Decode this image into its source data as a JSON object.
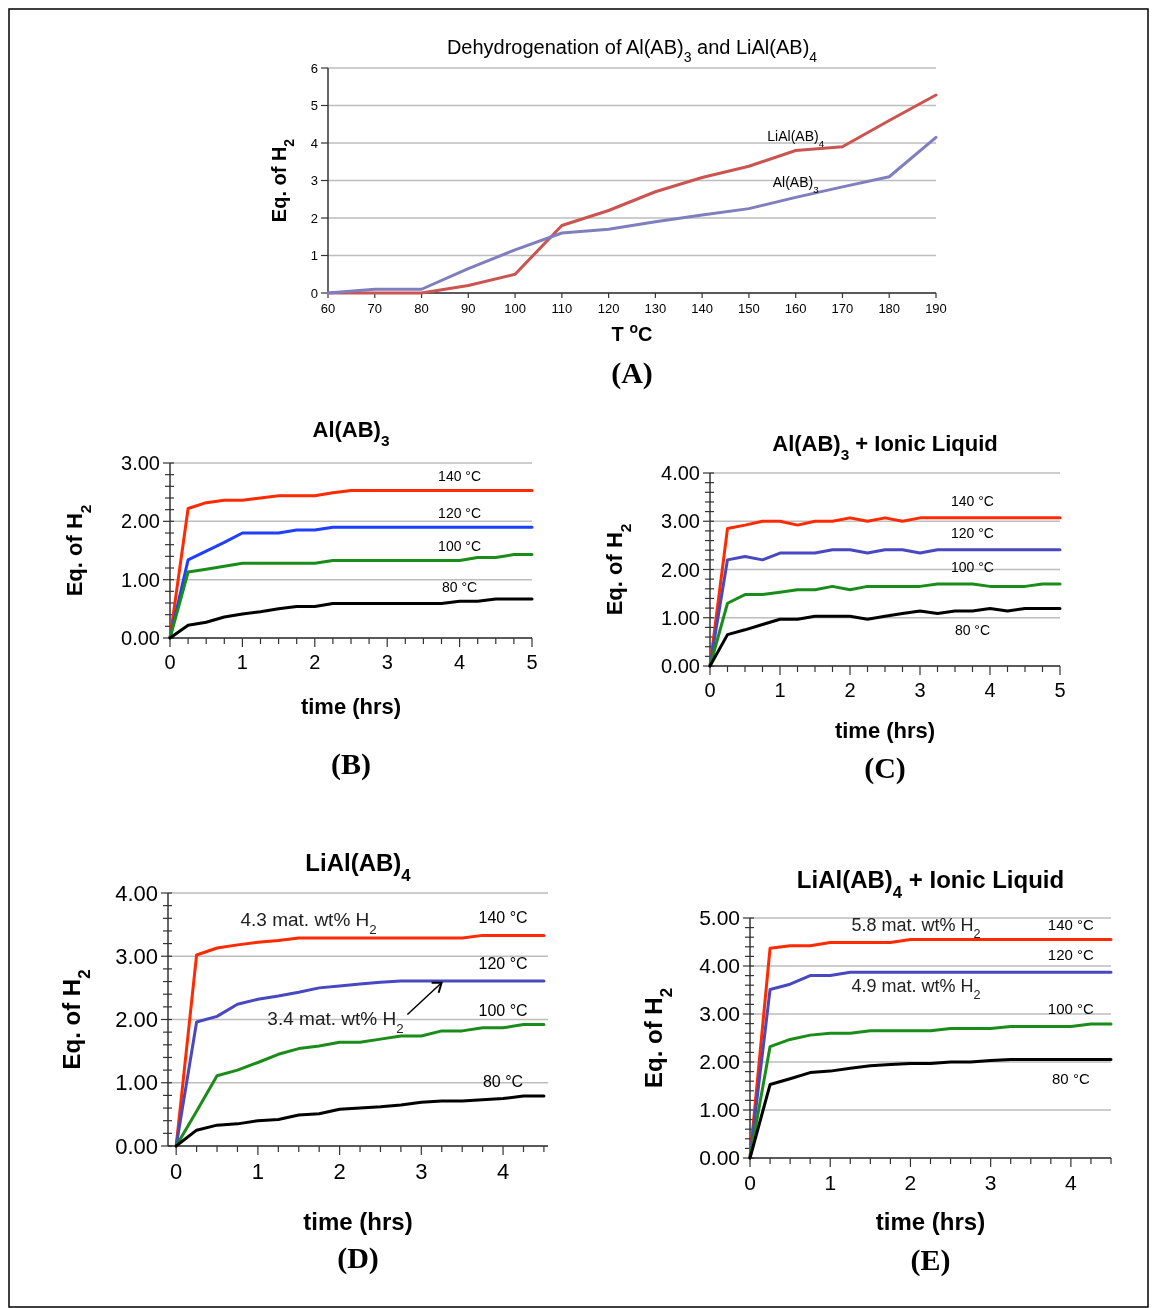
{
  "chart_data": [
    {
      "type": "line",
      "title": "Dehydrogenation of Al(AB)$_{3}$ and LiAl(AB)$_{4}$",
      "xlabel": "T $^{o}$C",
      "ylabel": "Eq. of H$_{2}$",
      "x": [
        60,
        70,
        80,
        90,
        100,
        110,
        120,
        130,
        140,
        150,
        160,
        170,
        180,
        190
      ],
      "series": [
        {
          "name": "LiAl(AB)$_{4}$",
          "color": "#cc5450",
          "values": [
            0,
            0,
            0,
            0.2,
            0.5,
            1.8,
            2.2,
            2.7,
            3.08,
            3.38,
            3.8,
            3.9,
            4.6,
            5.28
          ]
        },
        {
          "name": "Al(AB)$_{3}$",
          "color": "#7f7fbf",
          "values": [
            0,
            0.1,
            0.1,
            0.65,
            1.15,
            1.6,
            1.7,
            1.9,
            2.08,
            2.25,
            2.55,
            2.83,
            3.1,
            4.15
          ]
        }
      ],
      "xlim": [
        60,
        190
      ],
      "xticks": [
        60,
        70,
        80,
        90,
        100,
        110,
        120,
        130,
        140,
        150,
        160,
        170,
        180,
        190
      ],
      "ylim": [
        0,
        6
      ],
      "yticks": [
        0,
        1,
        2,
        3,
        4,
        5,
        6
      ],
      "grid": "y",
      "legend": false,
      "marker": "none",
      "annotations": [
        "(A)"
      ]
    },
    {
      "type": "line",
      "title": "Al(AB)$_{3}$",
      "xlabel": "time (hrs)",
      "ylabel": "Eq. of H$_{2}$",
      "x": [
        0,
        0.25,
        0.5,
        0.75,
        1,
        1.25,
        1.5,
        1.75,
        2,
        2.25,
        2.5,
        2.75,
        3,
        3.25,
        3.5,
        3.75,
        4,
        4.25,
        4.5,
        4.75,
        5
      ],
      "series": [
        {
          "name": "140 °C",
          "color": "#ff2a00",
          "values": [
            0,
            2.22,
            2.32,
            2.36,
            2.36,
            2.4,
            2.44,
            2.44,
            2.44,
            2.49,
            2.53,
            2.53,
            2.53,
            2.53,
            2.53,
            2.53,
            2.53,
            2.53,
            2.53,
            2.53,
            2.53
          ]
        },
        {
          "name": "120 °C",
          "color": "#1f3fff",
          "values": [
            0,
            1.34,
            1.49,
            1.64,
            1.8,
            1.8,
            1.8,
            1.85,
            1.85,
            1.9,
            1.9,
            1.9,
            1.9,
            1.9,
            1.9,
            1.9,
            1.9,
            1.9,
            1.9,
            1.9,
            1.9
          ]
        },
        {
          "name": "100 °C",
          "color": "#1a8c1a",
          "values": [
            0,
            1.13,
            1.18,
            1.23,
            1.28,
            1.28,
            1.28,
            1.28,
            1.28,
            1.33,
            1.33,
            1.33,
            1.33,
            1.33,
            1.33,
            1.33,
            1.33,
            1.38,
            1.38,
            1.43,
            1.43
          ]
        },
        {
          "name": "80 °C",
          "color": "#000000",
          "values": [
            0,
            0.22,
            0.27,
            0.36,
            0.41,
            0.45,
            0.5,
            0.54,
            0.54,
            0.59,
            0.59,
            0.59,
            0.59,
            0.59,
            0.59,
            0.59,
            0.63,
            0.63,
            0.67,
            0.67,
            0.67
          ]
        }
      ],
      "xlim": [
        0,
        5
      ],
      "xticks": [
        0,
        {
          "value": 0.25,
          "label": null
        },
        {
          "value": 0.5,
          "label": null
        },
        {
          "value": 0.75,
          "label": null
        },
        1,
        {
          "value": 1.25,
          "label": null
        },
        {
          "value": 1.5,
          "label": null
        },
        {
          "value": 1.75,
          "label": null
        },
        2,
        {
          "value": 2.25,
          "label": null
        },
        {
          "value": 2.5,
          "label": null
        },
        {
          "value": 2.75,
          "label": null
        },
        3,
        {
          "value": 3.25,
          "label": null
        },
        {
          "value": 3.5,
          "label": null
        },
        {
          "value": 3.75,
          "label": null
        },
        4,
        {
          "value": 4.25,
          "label": null
        },
        {
          "value": 4.5,
          "label": null
        },
        {
          "value": 4.75,
          "label": null
        },
        5
      ],
      "ylim": [
        0,
        3
      ],
      "yticks": [
        {
          "value": 0,
          "label": "0.00"
        },
        {
          "value": 0.2,
          "label": null
        },
        {
          "value": 0.4,
          "label": null
        },
        {
          "value": 0.6,
          "label": null
        },
        {
          "value": 0.8,
          "label": null
        },
        {
          "value": 1,
          "label": "1.00"
        },
        {
          "value": 1.2,
          "label": null
        },
        {
          "value": 1.4,
          "label": null
        },
        {
          "value": 1.6,
          "label": null
        },
        {
          "value": 1.8,
          "label": null
        },
        {
          "value": 2,
          "label": "2.00"
        },
        {
          "value": 2.2,
          "label": null
        },
        {
          "value": 2.4,
          "label": null
        },
        {
          "value": 2.6,
          "label": null
        },
        {
          "value": 2.8,
          "label": null
        },
        {
          "value": 3,
          "label": "3.00"
        }
      ],
      "grid": "y",
      "legend": false,
      "marker": "none",
      "annotations": [
        "(B)"
      ]
    },
    {
      "type": "line",
      "title": "Al(AB)$_{3}$ + Ionic Liquid",
      "xlabel": "time (hrs)",
      "ylabel": "Eq. of H$_{2}$",
      "x": [
        0,
        0.25,
        0.5,
        0.75,
        1,
        1.25,
        1.5,
        1.75,
        2,
        2.25,
        2.5,
        2.75,
        3,
        3.25,
        3.5,
        3.75,
        4,
        4.25,
        4.5,
        4.75,
        5
      ],
      "series": [
        {
          "name": "140 °C",
          "color": "#ff2a00",
          "values": [
            0,
            2.85,
            2.92,
            3,
            3,
            2.92,
            3,
            3,
            3.07,
            3,
            3.07,
            3,
            3.07,
            3.07,
            3.07,
            3.07,
            3.07,
            3.07,
            3.07,
            3.07,
            3.07
          ]
        },
        {
          "name": "120 °C",
          "color": "#4848c0",
          "values": [
            0,
            2.2,
            2.27,
            2.2,
            2.34,
            2.34,
            2.34,
            2.41,
            2.41,
            2.34,
            2.41,
            2.41,
            2.34,
            2.41,
            2.41,
            2.41,
            2.41,
            2.41,
            2.41,
            2.41,
            2.41
          ]
        },
        {
          "name": "100 °C",
          "color": "#1a8c1a",
          "values": [
            0,
            1.3,
            1.48,
            1.48,
            1.53,
            1.58,
            1.58,
            1.65,
            1.58,
            1.65,
            1.65,
            1.65,
            1.65,
            1.7,
            1.7,
            1.7,
            1.65,
            1.65,
            1.65,
            1.7,
            1.7
          ]
        },
        {
          "name": "80 °C",
          "color": "#000000",
          "values": [
            0,
            0.65,
            0.75,
            0.86,
            0.97,
            0.97,
            1.03,
            1.03,
            1.03,
            0.97,
            1.03,
            1.09,
            1.14,
            1.09,
            1.14,
            1.14,
            1.19,
            1.14,
            1.19,
            1.19,
            1.19
          ]
        }
      ],
      "xlim": [
        0,
        5
      ],
      "xticks": [
        0,
        {
          "value": 0.25,
          "label": null
        },
        {
          "value": 0.5,
          "label": null
        },
        {
          "value": 0.75,
          "label": null
        },
        1,
        {
          "value": 1.25,
          "label": null
        },
        {
          "value": 1.5,
          "label": null
        },
        {
          "value": 1.75,
          "label": null
        },
        2,
        {
          "value": 2.25,
          "label": null
        },
        {
          "value": 2.5,
          "label": null
        },
        {
          "value": 2.75,
          "label": null
        },
        3,
        {
          "value": 3.25,
          "label": null
        },
        {
          "value": 3.5,
          "label": null
        },
        {
          "value": 3.75,
          "label": null
        },
        4,
        {
          "value": 4.25,
          "label": null
        },
        {
          "value": 4.5,
          "label": null
        },
        {
          "value": 4.75,
          "label": null
        },
        5
      ],
      "ylim": [
        0,
        4
      ],
      "yticks": [
        {
          "value": 0,
          "label": "0.00"
        },
        {
          "value": 0.2,
          "label": null
        },
        {
          "value": 0.4,
          "label": null
        },
        {
          "value": 0.6,
          "label": null
        },
        {
          "value": 0.8,
          "label": null
        },
        {
          "value": 1,
          "label": "1.00"
        },
        {
          "value": 1.2,
          "label": null
        },
        {
          "value": 1.4,
          "label": null
        },
        {
          "value": 1.6,
          "label": null
        },
        {
          "value": 1.8,
          "label": null
        },
        {
          "value": 2,
          "label": "2.00"
        },
        {
          "value": 2.2,
          "label": null
        },
        {
          "value": 2.4,
          "label": null
        },
        {
          "value": 2.6,
          "label": null
        },
        {
          "value": 2.8,
          "label": null
        },
        {
          "value": 3,
          "label": "3.00"
        },
        {
          "value": 3.2,
          "label": null
        },
        {
          "value": 3.4,
          "label": null
        },
        {
          "value": 3.6,
          "label": null
        },
        {
          "value": 3.8,
          "label": null
        },
        {
          "value": 4,
          "label": "4.00"
        }
      ],
      "grid": "y",
      "legend": false,
      "marker": "none",
      "annotations": [
        "(C)"
      ]
    },
    {
      "type": "line",
      "title": "LiAl(AB)$_{4}$",
      "xlabel": "time (hrs)",
      "ylabel": "Eq. of H$_{2}$",
      "x": [
        0,
        0.25,
        0.5,
        0.75,
        1,
        1.25,
        1.5,
        1.75,
        2,
        2.25,
        2.5,
        2.75,
        3,
        3.25,
        3.5,
        3.75,
        4,
        4.25,
        4.5
      ],
      "series": [
        {
          "name": "140 °C",
          "color": "#ff2a00",
          "values": [
            0,
            3.02,
            3.13,
            3.18,
            3.22,
            3.25,
            3.29,
            3.29,
            3.29,
            3.29,
            3.29,
            3.29,
            3.29,
            3.29,
            3.29,
            3.33,
            3.33,
            3.33,
            3.33
          ]
        },
        {
          "name": "120 °C",
          "color": "#4848c0",
          "values": [
            0,
            1.96,
            2.05,
            2.24,
            2.32,
            2.37,
            2.43,
            2.5,
            2.53,
            2.56,
            2.59,
            2.61,
            2.61,
            2.61,
            2.61,
            2.61,
            2.61,
            2.61,
            2.61
          ]
        },
        {
          "name": "100 °C",
          "color": "#1a8c1a",
          "values": [
            0,
            0.55,
            1.11,
            1.2,
            1.32,
            1.45,
            1.54,
            1.58,
            1.64,
            1.64,
            1.69,
            1.74,
            1.74,
            1.82,
            1.82,
            1.87,
            1.87,
            1.92,
            1.92
          ]
        },
        {
          "name": "80 °C",
          "color": "#000000",
          "values": [
            0,
            0.25,
            0.33,
            0.35,
            0.4,
            0.42,
            0.49,
            0.51,
            0.58,
            0.6,
            0.62,
            0.65,
            0.69,
            0.71,
            0.71,
            0.73,
            0.75,
            0.79,
            0.79
          ]
        }
      ],
      "xlim": [
        -0.1,
        4.55
      ],
      "xticks": [
        0,
        {
          "value": 0.25,
          "label": null
        },
        {
          "value": 0.5,
          "label": null
        },
        {
          "value": 0.75,
          "label": null
        },
        1,
        {
          "value": 1.25,
          "label": null
        },
        {
          "value": 1.5,
          "label": null
        },
        {
          "value": 1.75,
          "label": null
        },
        2,
        {
          "value": 2.25,
          "label": null
        },
        {
          "value": 2.5,
          "label": null
        },
        {
          "value": 2.75,
          "label": null
        },
        3,
        {
          "value": 3.25,
          "label": null
        },
        {
          "value": 3.5,
          "label": null
        },
        {
          "value": 3.75,
          "label": null
        },
        4,
        {
          "value": 4.25,
          "label": null
        },
        {
          "value": 4.5,
          "label": null
        }
      ],
      "ylim": [
        0,
        4
      ],
      "yticks": [
        {
          "value": 0,
          "label": "0.00"
        },
        {
          "value": 0.2,
          "label": null
        },
        {
          "value": 0.4,
          "label": null
        },
        {
          "value": 0.6,
          "label": null
        },
        {
          "value": 0.8,
          "label": null
        },
        {
          "value": 1,
          "label": "1.00"
        },
        {
          "value": 1.2,
          "label": null
        },
        {
          "value": 1.4,
          "label": null
        },
        {
          "value": 1.6,
          "label": null
        },
        {
          "value": 1.8,
          "label": null
        },
        {
          "value": 2,
          "label": "2.00"
        },
        {
          "value": 2.2,
          "label": null
        },
        {
          "value": 2.4,
          "label": null
        },
        {
          "value": 2.6,
          "label": null
        },
        {
          "value": 2.8,
          "label": null
        },
        {
          "value": 3,
          "label": "3.00"
        },
        {
          "value": 3.2,
          "label": null
        },
        {
          "value": 3.4,
          "label": null
        },
        {
          "value": 3.6,
          "label": null
        },
        {
          "value": 3.8,
          "label": null
        },
        {
          "value": 4,
          "label": "4.00"
        }
      ],
      "grid": "y",
      "legend": false,
      "marker": "none",
      "annotations": [
        "4.3 mat. wt% H$_{2}$",
        "3.4 mat. wt% H$_{2}$",
        "(D)"
      ]
    },
    {
      "type": "line",
      "title": "LiAl(AB)$_{4}$ + Ionic Liquid",
      "xlabel": "time (hrs)",
      "ylabel": "Eq. of H$_{2}$",
      "x": [
        0,
        0.25,
        0.5,
        0.75,
        1,
        1.25,
        1.5,
        1.75,
        2,
        2.25,
        2.5,
        2.75,
        3,
        3.25,
        3.5,
        3.75,
        4,
        4.25,
        4.5
      ],
      "series": [
        {
          "name": "140 °C",
          "color": "#ff2a00",
          "values": [
            0,
            4.37,
            4.42,
            4.42,
            4.49,
            4.49,
            4.49,
            4.49,
            4.55,
            4.55,
            4.55,
            4.55,
            4.55,
            4.55,
            4.55,
            4.55,
            4.55,
            4.55,
            4.55
          ]
        },
        {
          "name": "120 °C",
          "color": "#4848c0",
          "values": [
            0,
            3.51,
            3.62,
            3.8,
            3.8,
            3.87,
            3.87,
            3.87,
            3.87,
            3.87,
            3.87,
            3.87,
            3.87,
            3.87,
            3.87,
            3.87,
            3.87,
            3.87,
            3.87
          ]
        },
        {
          "name": "100 °C",
          "color": "#1a8c1a",
          "values": [
            0,
            2.32,
            2.47,
            2.56,
            2.6,
            2.6,
            2.65,
            2.65,
            2.65,
            2.65,
            2.7,
            2.7,
            2.7,
            2.74,
            2.74,
            2.74,
            2.74,
            2.79,
            2.79
          ]
        },
        {
          "name": "80 °C",
          "color": "#000000",
          "values": [
            0,
            1.53,
            1.65,
            1.78,
            1.81,
            1.87,
            1.92,
            1.95,
            1.97,
            1.97,
            2,
            2,
            2.03,
            2.05,
            2.05,
            2.05,
            2.05,
            2.05,
            2.05
          ]
        }
      ],
      "xlim": [
        0,
        4.5
      ],
      "xticks": [
        0,
        {
          "value": 0.25,
          "label": null
        },
        {
          "value": 0.5,
          "label": null
        },
        {
          "value": 0.75,
          "label": null
        },
        1,
        {
          "value": 1.25,
          "label": null
        },
        {
          "value": 1.5,
          "label": null
        },
        {
          "value": 1.75,
          "label": null
        },
        2,
        {
          "value": 2.25,
          "label": null
        },
        {
          "value": 2.5,
          "label": null
        },
        {
          "value": 2.75,
          "label": null
        },
        3,
        {
          "value": 3.25,
          "label": null
        },
        {
          "value": 3.5,
          "label": null
        },
        {
          "value": 3.75,
          "label": null
        },
        4,
        {
          "value": 4.25,
          "label": null
        },
        {
          "value": 4.5,
          "label": null
        }
      ],
      "ylim": [
        0,
        5
      ],
      "yticks": [
        {
          "value": 0,
          "label": "0.00"
        },
        {
          "value": 0.2,
          "label": null
        },
        {
          "value": 0.4,
          "label": null
        },
        {
          "value": 0.6,
          "label": null
        },
        {
          "value": 0.8,
          "label": null
        },
        {
          "value": 1,
          "label": "1.00"
        },
        {
          "value": 1.2,
          "label": null
        },
        {
          "value": 1.4,
          "label": null
        },
        {
          "value": 1.6,
          "label": null
        },
        {
          "value": 1.8,
          "label": null
        },
        {
          "value": 2,
          "label": "2.00"
        },
        {
          "value": 2.2,
          "label": null
        },
        {
          "value": 2.4,
          "label": null
        },
        {
          "value": 2.6,
          "label": null
        },
        {
          "value": 2.8,
          "label": null
        },
        {
          "value": 3,
          "label": "3.00"
        },
        {
          "value": 3.2,
          "label": null
        },
        {
          "value": 3.4,
          "label": null
        },
        {
          "value": 3.6,
          "label": null
        },
        {
          "value": 3.8,
          "label": null
        },
        {
          "value": 4,
          "label": "4.00"
        },
        {
          "value": 4.2,
          "label": null
        },
        {
          "value": 4.4,
          "label": null
        },
        {
          "value": 4.6,
          "label": null
        },
        {
          "value": 4.8,
          "label": null
        },
        {
          "value": 5,
          "label": "5.00"
        }
      ],
      "grid": "y",
      "legend": false,
      "marker": "none",
      "annotations": [
        "5.8 mat. wt% H$_{2}$",
        "4.9 mat. wt% H$_{2}$",
        "(E)"
      ]
    }
  ]
}
